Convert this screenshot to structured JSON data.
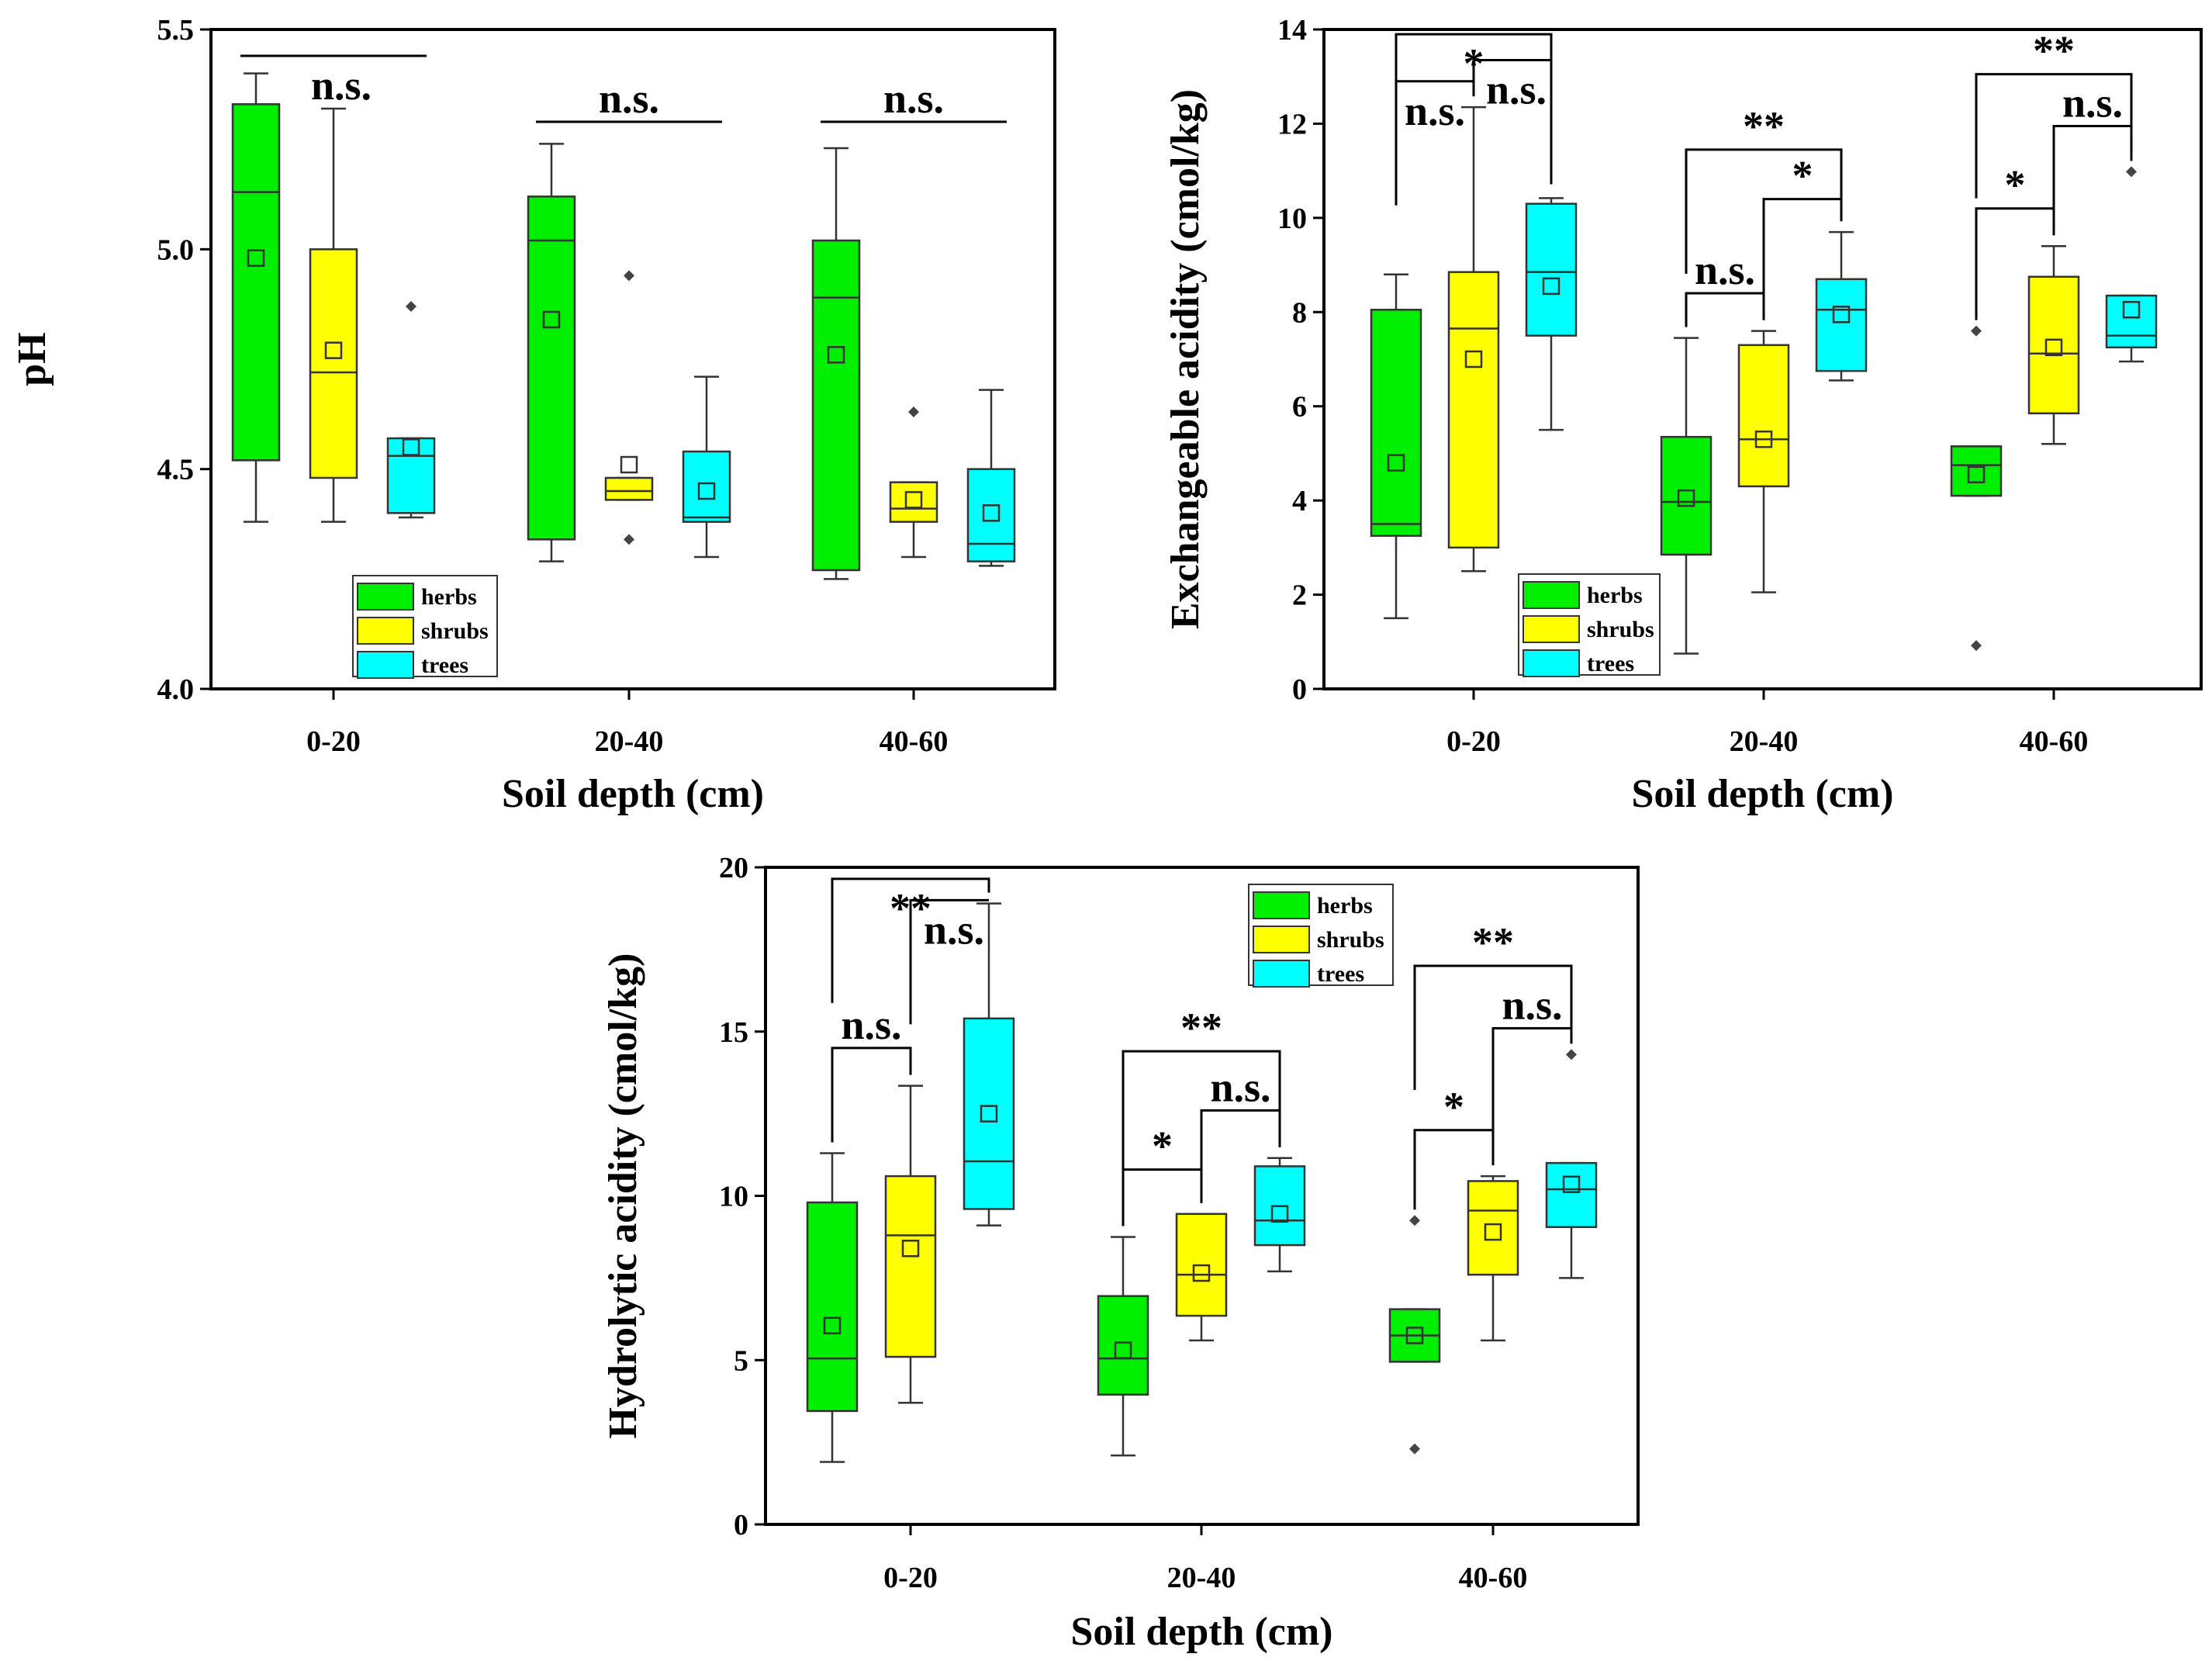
{
  "legend": {
    "entries": [
      {
        "key": "herbs",
        "label": "herbs",
        "color": "#00ee00"
      },
      {
        "key": "shrubs",
        "label": "shrubs",
        "color": "#ffff00"
      },
      {
        "key": "trees",
        "label": "trees",
        "color": "#00ffff"
      }
    ]
  },
  "chart_data": [
    {
      "id": "ph",
      "type": "box",
      "title": "",
      "xlabel": "Soil depth (cm)",
      "ylabel": "pH",
      "categories": [
        "0-20",
        "20-40",
        "40-60"
      ],
      "ylim": [
        4.0,
        5.5
      ],
      "yticks": [
        4.0,
        4.5,
        5.0,
        5.5
      ],
      "ytick_labels": [
        "4.0",
        "4.5",
        "5.0",
        "5.5"
      ],
      "series": [
        {
          "name": "herbs",
          "boxes": [
            {
              "min": 4.38,
              "q1": 4.52,
              "median": 5.13,
              "q3": 5.33,
              "max": 5.4,
              "mean": 4.98,
              "outliers": []
            },
            {
              "min": 4.29,
              "q1": 4.34,
              "median": 5.02,
              "q3": 5.12,
              "max": 5.24,
              "mean": 4.84,
              "outliers": []
            },
            {
              "min": 4.25,
              "q1": 4.27,
              "median": 4.89,
              "q3": 5.02,
              "max": 5.23,
              "mean": 4.76,
              "outliers": []
            }
          ]
        },
        {
          "name": "shrubs",
          "boxes": [
            {
              "min": 4.38,
              "q1": 4.48,
              "median": 4.72,
              "q3": 5.0,
              "max": 5.32,
              "mean": 4.77,
              "outliers": []
            },
            {
              "min": 4.43,
              "q1": 4.43,
              "median": 4.45,
              "q3": 4.48,
              "max": 4.48,
              "mean": 4.51,
              "outliers": [
                4.94,
                4.34
              ]
            },
            {
              "min": 4.3,
              "q1": 4.38,
              "median": 4.41,
              "q3": 4.47,
              "max": 4.47,
              "mean": 4.43,
              "outliers": [
                4.63
              ]
            }
          ]
        },
        {
          "name": "trees",
          "boxes": [
            {
              "min": 4.39,
              "q1": 4.4,
              "median": 4.53,
              "q3": 4.57,
              "max": 4.57,
              "mean": 4.55,
              "outliers": [
                4.87
              ]
            },
            {
              "min": 4.3,
              "q1": 4.38,
              "median": 4.39,
              "q3": 4.54,
              "max": 4.71,
              "mean": 4.45,
              "outliers": []
            },
            {
              "min": 4.28,
              "q1": 4.29,
              "median": 4.33,
              "q3": 4.5,
              "max": 4.68,
              "mean": 4.4,
              "outliers": []
            }
          ]
        }
      ],
      "annotations": [
        {
          "group": 0,
          "from": 0,
          "to": 2,
          "y": 5.44,
          "label": "n.s.",
          "style": "line",
          "label_pos": "right-below"
        },
        {
          "group": 1,
          "from": 0,
          "to": 2,
          "y": 5.29,
          "label": "n.s.",
          "style": "line",
          "label_pos": "above"
        },
        {
          "group": 2,
          "from": 0,
          "to": 2,
          "y": 5.29,
          "label": "n.s.",
          "style": "line",
          "label_pos": "above"
        }
      ]
    },
    {
      "id": "ea",
      "type": "box",
      "title": "",
      "xlabel": "Soil depth (cm)",
      "ylabel": "Exchangeable acidity (cmol/kg)",
      "categories": [
        "0-20",
        "20-40",
        "40-60"
      ],
      "ylim": [
        0,
        14
      ],
      "yticks": [
        0,
        2,
        4,
        6,
        8,
        10,
        12,
        14
      ],
      "ytick_labels": [
        "0",
        "2",
        "4",
        "6",
        "8",
        "10",
        "12",
        "14"
      ],
      "series": [
        {
          "name": "herbs",
          "boxes": [
            {
              "min": 1.5,
              "q1": 3.25,
              "median": 3.5,
              "q3": 8.05,
              "max": 8.8,
              "mean": 4.8,
              "outliers": []
            },
            {
              "min": 0.75,
              "q1": 2.85,
              "median": 3.97,
              "q3": 5.35,
              "max": 7.45,
              "mean": 4.05,
              "outliers": []
            },
            {
              "min": 4.1,
              "q1": 4.1,
              "median": 4.75,
              "q3": 5.15,
              "max": 5.15,
              "mean": 4.55,
              "outliers": [
                7.6,
                0.92
              ]
            }
          ]
        },
        {
          "name": "shrubs",
          "boxes": [
            {
              "min": 2.5,
              "q1": 3.0,
              "median": 7.65,
              "q3": 8.85,
              "max": 12.35,
              "mean": 7.0,
              "outliers": []
            },
            {
              "min": 2.05,
              "q1": 4.3,
              "median": 5.3,
              "q3": 7.3,
              "max": 7.6,
              "mean": 5.3,
              "outliers": []
            },
            {
              "min": 5.2,
              "q1": 5.85,
              "median": 7.12,
              "q3": 8.75,
              "max": 9.4,
              "mean": 7.25,
              "outliers": []
            }
          ]
        },
        {
          "name": "trees",
          "boxes": [
            {
              "min": 5.5,
              "q1": 7.5,
              "median": 8.85,
              "q3": 10.3,
              "max": 10.42,
              "mean": 8.55,
              "outliers": []
            },
            {
              "min": 6.55,
              "q1": 6.75,
              "median": 8.05,
              "q3": 8.7,
              "max": 9.7,
              "mean": 7.95,
              "outliers": []
            },
            {
              "min": 6.95,
              "q1": 7.25,
              "median": 7.5,
              "q3": 8.35,
              "max": 8.35,
              "mean": 8.05,
              "outliers": [
                10.98
              ]
            }
          ]
        }
      ],
      "annotations": [
        {
          "group": 0,
          "from": 0,
          "to": 1,
          "y": 12.9,
          "label": "n.s.",
          "style": "bracket",
          "label_pos": "below"
        },
        {
          "group": 0,
          "from": 1,
          "to": 2,
          "y": 13.35,
          "label": "n.s.",
          "style": "bracket",
          "label_pos": "below-right"
        },
        {
          "group": 0,
          "from": 0,
          "to": 2,
          "y": 13.9,
          "label": "*",
          "style": "bracket",
          "label_pos": "below"
        },
        {
          "group": 1,
          "from": 0,
          "to": 1,
          "y": 8.4,
          "label": "n.s.",
          "style": "bracket",
          "label_pos": "above"
        },
        {
          "group": 1,
          "from": 1,
          "to": 2,
          "y": 10.4,
          "label": "*",
          "style": "bracket",
          "label_pos": "above"
        },
        {
          "group": 1,
          "from": 0,
          "to": 2,
          "y": 11.45,
          "label": "**",
          "style": "bracket",
          "label_pos": "above"
        },
        {
          "group": 2,
          "from": 0,
          "to": 1,
          "y": 10.2,
          "label": "*",
          "style": "bracket",
          "label_pos": "above"
        },
        {
          "group": 2,
          "from": 1,
          "to": 2,
          "y": 11.95,
          "label": "n.s.",
          "style": "bracket",
          "label_pos": "above"
        },
        {
          "group": 2,
          "from": 0,
          "to": 2,
          "y": 13.05,
          "label": "**",
          "style": "bracket",
          "label_pos": "above"
        }
      ]
    },
    {
      "id": "ha",
      "type": "box",
      "title": "",
      "xlabel": "Soil depth (cm)",
      "ylabel": "Hydrolytic acidity (cmol/kg)",
      "categories": [
        "0-20",
        "20-40",
        "40-60"
      ],
      "ylim": [
        0,
        20
      ],
      "yticks": [
        0,
        5,
        10,
        15,
        20
      ],
      "ytick_labels": [
        "0",
        "5",
        "10",
        "15",
        "20"
      ],
      "series": [
        {
          "name": "herbs",
          "boxes": [
            {
              "min": 1.9,
              "q1": 3.45,
              "median": 5.05,
              "q3": 9.8,
              "max": 11.3,
              "mean": 6.05,
              "outliers": []
            },
            {
              "min": 2.1,
              "q1": 3.95,
              "median": 5.05,
              "q3": 6.95,
              "max": 8.75,
              "mean": 5.3,
              "outliers": []
            },
            {
              "min": 4.95,
              "q1": 4.95,
              "median": 5.75,
              "q3": 6.55,
              "max": 6.55,
              "mean": 5.75,
              "outliers": [
                9.25,
                2.3
              ]
            }
          ]
        },
        {
          "name": "shrubs",
          "boxes": [
            {
              "min": 3.7,
              "q1": 5.1,
              "median": 8.8,
              "q3": 10.6,
              "max": 13.35,
              "mean": 8.4,
              "outliers": []
            },
            {
              "min": 5.6,
              "q1": 6.35,
              "median": 7.6,
              "q3": 9.45,
              "max": 9.45,
              "mean": 7.65,
              "outliers": []
            },
            {
              "min": 5.6,
              "q1": 7.6,
              "median": 9.55,
              "q3": 10.45,
              "max": 10.6,
              "mean": 8.9,
              "outliers": []
            }
          ]
        },
        {
          "name": "trees",
          "boxes": [
            {
              "min": 9.1,
              "q1": 9.6,
              "median": 11.05,
              "q3": 15.4,
              "max": 18.9,
              "mean": 12.5,
              "outliers": []
            },
            {
              "min": 7.7,
              "q1": 8.5,
              "median": 9.25,
              "q3": 10.9,
              "max": 11.15,
              "mean": 9.45,
              "outliers": []
            },
            {
              "min": 7.5,
              "q1": 9.05,
              "median": 10.2,
              "q3": 11.0,
              "max": 11.0,
              "mean": 10.35,
              "outliers": [
                14.3
              ]
            }
          ]
        }
      ],
      "annotations": [
        {
          "group": 0,
          "from": 0,
          "to": 1,
          "y": 14.5,
          "label": "n.s.",
          "style": "bracket",
          "label_pos": "above"
        },
        {
          "group": 0,
          "from": 1,
          "to": 2,
          "y": 19.0,
          "label": "n.s.",
          "style": "bracket",
          "label_pos": "below-right"
        },
        {
          "group": 0,
          "from": 0,
          "to": 2,
          "y": 19.65,
          "label": "**",
          "style": "bracket",
          "label_pos": "below"
        },
        {
          "group": 1,
          "from": 0,
          "to": 1,
          "y": 10.8,
          "label": "*",
          "style": "bracket",
          "label_pos": "above"
        },
        {
          "group": 1,
          "from": 1,
          "to": 2,
          "y": 12.6,
          "label": "n.s.",
          "style": "bracket",
          "label_pos": "above"
        },
        {
          "group": 1,
          "from": 0,
          "to": 2,
          "y": 14.4,
          "label": "**",
          "style": "bracket",
          "label_pos": "above"
        },
        {
          "group": 2,
          "from": 0,
          "to": 1,
          "y": 12.0,
          "label": "*",
          "style": "bracket",
          "label_pos": "above"
        },
        {
          "group": 2,
          "from": 1,
          "to": 2,
          "y": 15.1,
          "label": "n.s.",
          "style": "bracket",
          "label_pos": "above"
        },
        {
          "group": 2,
          "from": 0,
          "to": 2,
          "y": 17.0,
          "label": "**",
          "style": "bracket",
          "label_pos": "above"
        }
      ]
    }
  ]
}
